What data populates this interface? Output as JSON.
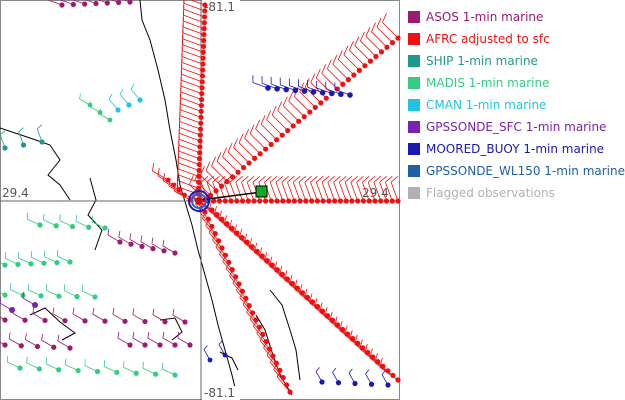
{
  "map": {
    "lon_label_top": "-81.1",
    "lon_label_bottom": "-81.1",
    "lat_label_left": "29.4",
    "lat_label_right": "29.4"
  },
  "legend": {
    "items": [
      {
        "label": "ASOS 1-min marine",
        "color": "#9b1b6e"
      },
      {
        "label": "AFRC adjusted to sfc",
        "color": "#ee1111"
      },
      {
        "label": "SHIP 1-min marine",
        "color": "#1f9a8a"
      },
      {
        "label": "MADIS 1-min marine",
        "color": "#33cc80"
      },
      {
        "label": "CMAN 1-min marine",
        "color": "#22c4dd"
      },
      {
        "label": "GPSSONDE_SFC 1-min marine",
        "color": "#7a22b0"
      },
      {
        "label": "MOORED_BUOY 1-min marine",
        "color": "#1a1ab0"
      },
      {
        "label": "GPSSONDE_WL150 1-min marine",
        "color": "#1f5fa8"
      },
      {
        "label": "Flagged observations",
        "color": "#b0b0b0"
      }
    ]
  }
}
